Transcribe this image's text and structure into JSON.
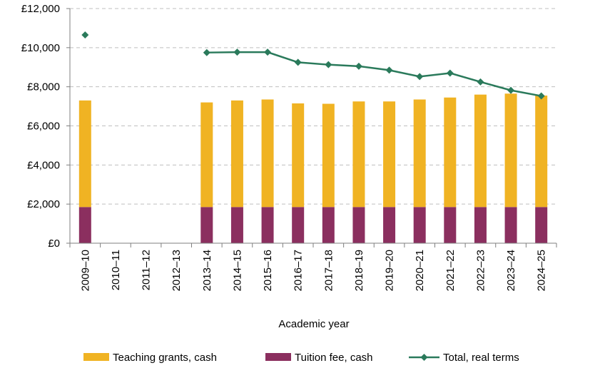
{
  "chart_data": {
    "type": "bar",
    "title": "",
    "xlabel": "Academic year",
    "ylabel": "",
    "ylim": [
      0,
      12000
    ],
    "y_ticks": [
      0,
      2000,
      4000,
      6000,
      8000,
      10000,
      12000
    ],
    "y_tick_labels": [
      "£0",
      "£2,000",
      "£4,000",
      "£6,000",
      "£8,000",
      "£10,000",
      "£12,000"
    ],
    "grid": "horizontal dashed",
    "legend_position": "bottom",
    "stacked": true,
    "categories": [
      "2009–10",
      "2010–11",
      "2011–12",
      "2012–13",
      "2013–14",
      "2014–15",
      "2015–16",
      "2016–17",
      "2017–18",
      "2018–19",
      "2019–20",
      "2020–21",
      "2021–22",
      "2022–23",
      "2023–24",
      "2024–25"
    ],
    "series": [
      {
        "name": "Teaching grants, cash",
        "kind": "bar",
        "color": "#F0B323",
        "values": [
          5450,
          null,
          null,
          null,
          5350,
          5450,
          5500,
          5300,
          5280,
          5400,
          5400,
          5500,
          5600,
          5750,
          5800,
          5700
        ]
      },
      {
        "name": "Tuition fee, cash",
        "kind": "bar",
        "color": "#8B2F5F",
        "values": [
          1850,
          null,
          null,
          null,
          1850,
          1850,
          1850,
          1850,
          1850,
          1850,
          1850,
          1850,
          1850,
          1850,
          1850,
          1850
        ]
      },
      {
        "name": "Total, real terms",
        "kind": "line",
        "color": "#2A7A5B",
        "values": [
          10650,
          null,
          null,
          null,
          9750,
          9770,
          9770,
          9250,
          9130,
          9050,
          8850,
          8520,
          8700,
          8250,
          7820,
          7530
        ]
      }
    ]
  }
}
